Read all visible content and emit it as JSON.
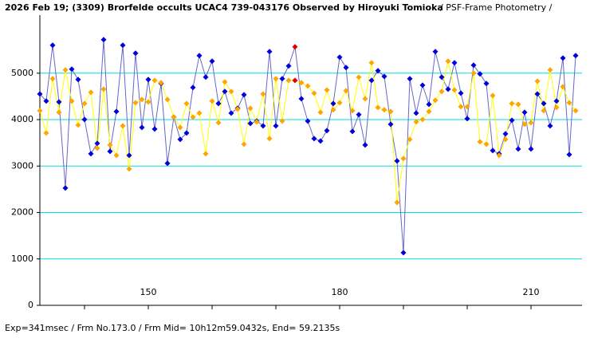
{
  "chart_data": {
    "type": "line",
    "title": "2026 Feb 19; (3309) Brorfelde occults UCAC4 739-043176 Observed by Hiroyuki Tomioka",
    "subtitle": "/ PSF-Frame Photometry /",
    "footer": "Exp=341msec / Frm No.173.0 / Frm Mid= 10h12m59.0432s, End= 59.2135s",
    "x": [
      133,
      134,
      135,
      136,
      137,
      138,
      139,
      140,
      141,
      142,
      143,
      144,
      145,
      146,
      147,
      148,
      149,
      150,
      151,
      152,
      153,
      154,
      155,
      156,
      157,
      158,
      159,
      160,
      161,
      162,
      163,
      164,
      165,
      166,
      167,
      168,
      169,
      170,
      171,
      172,
      173,
      174,
      175,
      176,
      177,
      178,
      179,
      180,
      181,
      182,
      183,
      184,
      185,
      186,
      187,
      188,
      189,
      190,
      191,
      192,
      193,
      194,
      195,
      196,
      197,
      198,
      199,
      200,
      201,
      202,
      203,
      204,
      205,
      206,
      207,
      208,
      209,
      210,
      211,
      212,
      213,
      214,
      215,
      216,
      217
    ],
    "series": [
      {
        "color": "#0000dd",
        "line_color": "#6666cc",
        "values": [
          4553,
          4399,
          5601,
          4381,
          2526,
          5086,
          4863,
          4003,
          3265,
          3488,
          5722,
          3316,
          4175,
          5601,
          3230,
          5430,
          3832,
          4863,
          3797,
          4777,
          3058,
          4055,
          3574,
          3711,
          4691,
          5378,
          4914,
          5258,
          4347,
          4605,
          4141,
          4244,
          4536,
          3918,
          3969,
          3866,
          5464,
          3866,
          4880,
          5155,
          5567,
          4450,
          3969,
          3591,
          3540,
          3763,
          4347,
          5344,
          5120,
          3746,
          4107,
          3454,
          4845,
          5052,
          4931,
          3900,
          3110,
          1134,
          4880,
          4141,
          4742,
          4330,
          5464,
          4914,
          4656,
          5223,
          4570,
          4021,
          5172,
          4983,
          4777,
          3333,
          3265,
          3694,
          3986,
          3368,
          4158,
          3368,
          4553,
          4347,
          3866,
          4399,
          5326,
          3247,
          5378
        ]
      },
      {
        "color": "#ffa500",
        "line_color": "#ffff00",
        "values": [
          4192,
          3711,
          4880,
          4158,
          5069,
          4399,
          3883,
          4347,
          4588,
          3385,
          4656,
          3454,
          3230,
          3866,
          2938,
          4364,
          4433,
          4381,
          4845,
          4794,
          4433,
          4055,
          3832,
          4347,
          4055,
          4141,
          3265,
          4399,
          3935,
          4811,
          4605,
          4227,
          3471,
          4244,
          3952,
          4553,
          3591,
          4880,
          3969,
          4845,
          4845,
          4794,
          4725,
          4570,
          4158,
          4639,
          4210,
          4364,
          4622,
          4192,
          4914,
          4450,
          5223,
          4261,
          4210,
          4175,
          2216,
          3161,
          3574,
          3952,
          4003,
          4175,
          4416,
          4605,
          5258,
          4639,
          4278,
          4278,
          5000,
          3522,
          3471,
          4519,
          3230,
          3574,
          4347,
          4330,
          3900,
          3935,
          4828,
          4192,
          5069,
          4261,
          4708,
          4364,
          4192
        ]
      }
    ],
    "highlight_index": 40,
    "highlight_color": "#e00000",
    "xlim": [
      133,
      218
    ],
    "xticks": [
      150,
      180,
      210
    ],
    "xminor_ticks": [
      140,
      160,
      170,
      190,
      200
    ],
    "ylim": [
      0,
      6250
    ],
    "yticks": [
      0,
      1000,
      2000,
      3000,
      4000,
      5000
    ],
    "grid": true,
    "grid_color": "#00dddd"
  }
}
